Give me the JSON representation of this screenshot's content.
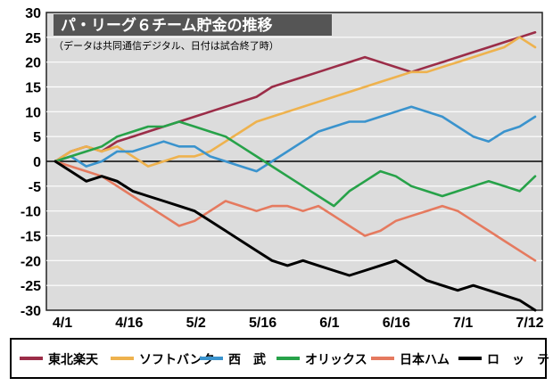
{
  "chart_data": {
    "type": "line",
    "title": "パ・リーグ６チーム貯金の推移",
    "subtitle": "（データは共同通信デジタル、日付は試合終了時）",
    "x_tick_labels": [
      "4/1",
      "4/16",
      "5/2",
      "5/16",
      "6/1",
      "6/16",
      "7/1",
      "7/12"
    ],
    "y_ticks": [
      30,
      25,
      20,
      15,
      10,
      5,
      0,
      -5,
      -10,
      -15,
      -20,
      -25,
      -30
    ],
    "ylim": [
      -30,
      30
    ],
    "grid": true,
    "legend_position": "bottom",
    "series": [
      {
        "name": "東北楽天",
        "color": "#9b2d48",
        "values": [
          0,
          2,
          3,
          2,
          4,
          5,
          6,
          7,
          8,
          9,
          10,
          11,
          12,
          13,
          15,
          16,
          17,
          18,
          19,
          20,
          21,
          20,
          19,
          18,
          19,
          20,
          21,
          22,
          23,
          24,
          25,
          26
        ]
      },
      {
        "name": "ソフトバンク",
        "color": "#eeb24e",
        "values": [
          0,
          2,
          3,
          2,
          3,
          1,
          -1,
          0,
          1,
          1,
          2,
          4,
          6,
          8,
          9,
          10,
          11,
          12,
          13,
          14,
          15,
          16,
          17,
          18,
          18,
          19,
          20,
          21,
          22,
          23,
          25,
          23
        ]
      },
      {
        "name": "西　武",
        "color": "#3a93cd",
        "values": [
          0,
          1,
          -1,
          0,
          2,
          2,
          3,
          4,
          3,
          3,
          1,
          0,
          -1,
          -2,
          0,
          2,
          4,
          6,
          7,
          8,
          8,
          9,
          10,
          11,
          10,
          9,
          7,
          5,
          4,
          6,
          7,
          9
        ]
      },
      {
        "name": "オリックス",
        "color": "#27a249",
        "values": [
          0,
          1,
          2,
          3,
          5,
          6,
          7,
          7,
          8,
          7,
          6,
          5,
          3,
          1,
          -1,
          -3,
          -5,
          -7,
          -9,
          -6,
          -4,
          -2,
          -3,
          -5,
          -6,
          -7,
          -6,
          -5,
          -4,
          -5,
          -6,
          -3
        ]
      },
      {
        "name": "日本ハム",
        "color": "#e57a5f",
        "values": [
          0,
          -1,
          -2,
          -3,
          -5,
          -7,
          -9,
          -11,
          -13,
          -12,
          -10,
          -8,
          -9,
          -10,
          -9,
          -9,
          -10,
          -9,
          -11,
          -13,
          -15,
          -14,
          -12,
          -11,
          -10,
          -9,
          -10,
          -12,
          -14,
          -16,
          -18,
          -20
        ]
      },
      {
        "name": "ロ　ッ　テ",
        "color": "#000000",
        "values": [
          0,
          -2,
          -4,
          -3,
          -4,
          -6,
          -7,
          -8,
          -9,
          -10,
          -12,
          -14,
          -16,
          -18,
          -20,
          -21,
          -20,
          -21,
          -22,
          -23,
          -22,
          -21,
          -20,
          -22,
          -24,
          -25,
          -26,
          -25,
          -26,
          -27,
          -28,
          -30
        ]
      }
    ]
  }
}
